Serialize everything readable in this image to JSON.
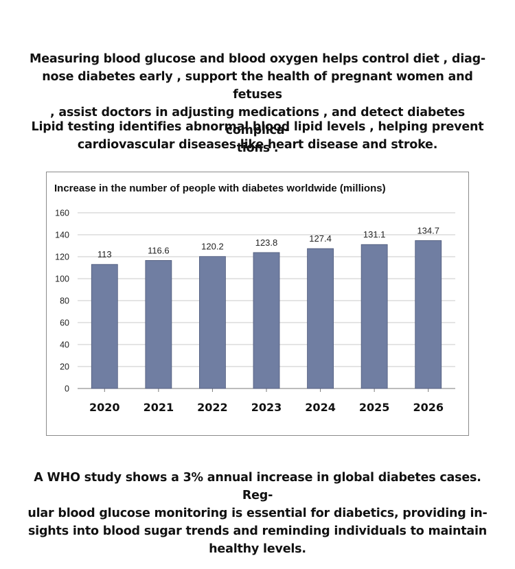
{
  "intro": {
    "paragraph_1": "Measuring blood glucose and blood oxygen helps control diet , diag-nose diabetes early , support the health of pregnant women and fetuses , assist doctors in adjusting medications , and detect diabetes complica-tions .",
    "paragraph_1_lines": [
      "Measuring blood glucose and blood oxygen helps control diet , diag-",
      "nose diabetes early , support the health of pregnant women and fetuses",
      ", assist doctors in adjusting medications , and detect diabetes complica-",
      "tions ."
    ],
    "paragraph_2_lines": [
      "Lipid testing identifies abnormal blood lipid levels , helping prevent",
      "cardiovascular diseases like heart disease and stroke."
    ]
  },
  "chart_data": {
    "type": "bar",
    "title": "Increase in the number of people with diabetes worldwide (millions)",
    "categories": [
      "2020",
      "2021",
      "2022",
      "2023",
      "2024",
      "2025",
      "2026"
    ],
    "values": [
      113,
      116.6,
      120.2,
      123.8,
      127.4,
      131.1,
      134.7
    ],
    "data_labels": [
      "113",
      "116.6",
      "120.2",
      "123.8",
      "127.4",
      "131.1",
      "134.7"
    ],
    "y_ticks": [
      0,
      20,
      40,
      60,
      80,
      100,
      120,
      140,
      160
    ],
    "ylim": [
      0,
      160
    ],
    "xlabel": "",
    "ylabel": "",
    "grid": true,
    "legend": "none",
    "bar_color": "#707ea2"
  },
  "outro": {
    "paragraph_lines": [
      "A WHO study shows a 3% annual increase in global diabetes cases. Reg-",
      "ular blood glucose monitoring is essential for diabetics, providing in-",
      "sights into blood sugar trends and reminding individuals to maintain",
      "healthy levels."
    ]
  }
}
